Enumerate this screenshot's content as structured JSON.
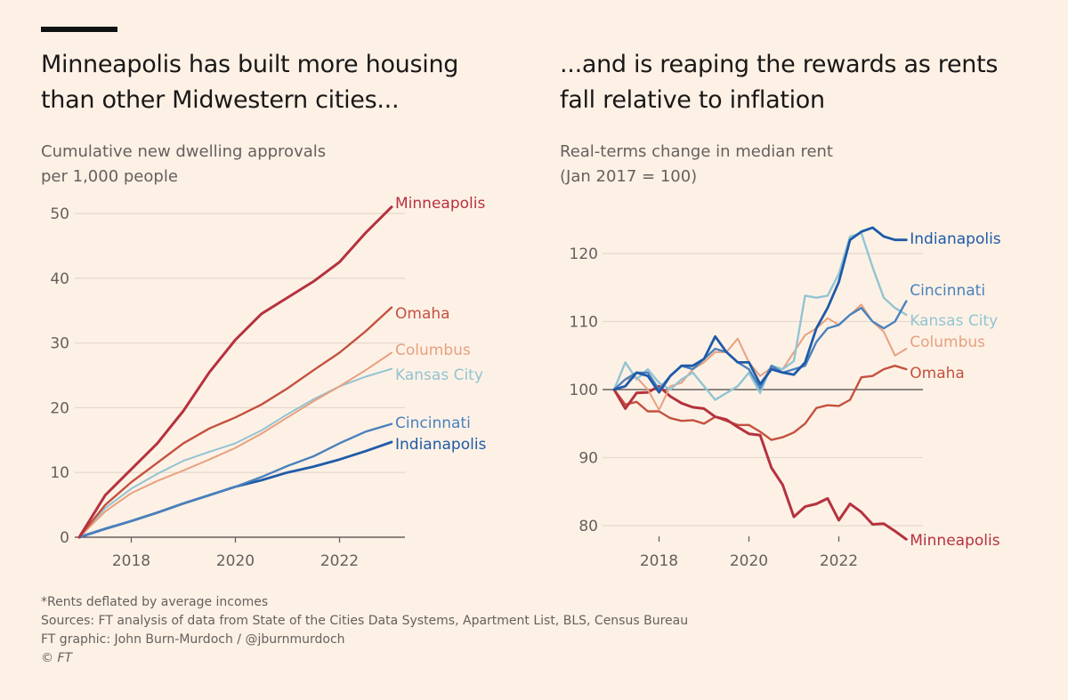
{
  "left": {
    "title_line1": "Minneapolis has built more housing",
    "title_line2": "than other Midwestern cities...",
    "subtitle_line1": "Cumulative new dwelling approvals",
    "subtitle_line2": "per 1,000 people"
  },
  "right": {
    "title_line1": "...and is reaping the rewards as rents",
    "title_line2": "fall relative to inflation",
    "subtitle_line1": "Real-terms change in median rent",
    "subtitle_line2": "(Jan 2017 = 100)"
  },
  "footer": {
    "note": "*Rents deflated by average incomes",
    "sources": "Sources: FT analysis of data from State of the Cities Data Systems, Apartment List, BLS, Census Bureau",
    "credit": "FT graphic: John Burn-Murdoch / @jburnmurdoch",
    "copyright": "© FT"
  },
  "colors": {
    "Minneapolis": "#b5323e",
    "Omaha": "#c4513e",
    "Columbus": "#e8a07f",
    "Kansas City": "#93c4d2",
    "Cincinnati": "#4a81bd",
    "Indianapolis": "#1f5aa8"
  },
  "chart_data": [
    {
      "type": "line",
      "title": "Minneapolis has built more housing than other Midwestern cities...",
      "subtitle": "Cumulative new dwelling approvals per 1,000 people",
      "xlabel": "",
      "ylabel": "",
      "xlim": [
        2017,
        2023
      ],
      "ylim": [
        0,
        50
      ],
      "xticks": [
        2018,
        2020,
        2022
      ],
      "yticks": [
        0,
        10,
        20,
        30,
        40,
        50
      ],
      "grid": true,
      "x": [
        2017,
        2017.5,
        2018,
        2018.5,
        2019,
        2019.5,
        2020,
        2020.5,
        2021,
        2021.5,
        2022,
        2022.5,
        2023
      ],
      "series": [
        {
          "name": "Minneapolis",
          "values": [
            0,
            6.5,
            10.5,
            14.5,
            19.5,
            25.5,
            30.5,
            34.5,
            37,
            39.5,
            42.5,
            47,
            51
          ]
        },
        {
          "name": "Omaha",
          "values": [
            0,
            5,
            8.5,
            11.5,
            14.5,
            16.8,
            18.5,
            20.5,
            23,
            25.8,
            28.5,
            31.8,
            35.5
          ]
        },
        {
          "name": "Columbus",
          "values": [
            0,
            4,
            6.8,
            8.7,
            10.3,
            12,
            13.8,
            16,
            18.5,
            21,
            23.3,
            25.8,
            28.5
          ]
        },
        {
          "name": "Kansas City",
          "values": [
            0,
            4.5,
            7.5,
            9.8,
            11.8,
            13.2,
            14.5,
            16.5,
            19,
            21.3,
            23.3,
            24.8,
            26
          ]
        },
        {
          "name": "Cincinnati",
          "values": [
            0,
            1.3,
            2.5,
            3.8,
            5.2,
            6.5,
            7.8,
            9.3,
            11,
            12.5,
            14.5,
            16.3,
            17.5
          ]
        },
        {
          "name": "Indianapolis",
          "values": [
            0,
            1.3,
            2.5,
            3.8,
            5.2,
            6.5,
            7.8,
            8.8,
            10,
            10.9,
            12,
            13.3,
            14.7
          ]
        }
      ],
      "labels": [
        "Minneapolis",
        "Omaha",
        "Columbus",
        "Kansas City",
        "Cincinnati",
        "Indianapolis"
      ],
      "legend": "direct-labels-right"
    },
    {
      "type": "line",
      "title": "...and is reaping the rewards as rents fall relative to inflation",
      "subtitle": "Real-terms change in median rent (Jan 2017 = 100)",
      "xlabel": "",
      "ylabel": "",
      "xlim": [
        2017,
        2023.5
      ],
      "ylim": [
        77,
        125
      ],
      "xticks": [
        2018,
        2020,
        2022
      ],
      "yticks": [
        80,
        90,
        100,
        110,
        120
      ],
      "baseline": 100,
      "grid": true,
      "x": [
        2017,
        2017.25,
        2017.5,
        2017.75,
        2018,
        2018.25,
        2018.5,
        2018.75,
        2019,
        2019.25,
        2019.5,
        2019.75,
        2020,
        2020.25,
        2020.5,
        2020.75,
        2021,
        2021.25,
        2021.5,
        2021.75,
        2022,
        2022.25,
        2022.5,
        2022.75,
        2023,
        2023.25,
        2023.5
      ],
      "series": [
        {
          "name": "Minneapolis",
          "values": [
            100,
            97.2,
            99.5,
            99.6,
            100.5,
            99,
            98,
            97.4,
            97.2,
            96,
            95.6,
            94.5,
            93.5,
            93.3,
            88.5,
            86,
            81.3,
            82.8,
            83.2,
            84,
            80.8,
            83.2,
            82,
            80.2,
            80.3,
            79.2,
            78
          ]
        },
        {
          "name": "Omaha",
          "values": [
            100,
            97.8,
            98.2,
            96.8,
            96.8,
            95.8,
            95.4,
            95.5,
            95,
            96,
            95.4,
            94.8,
            94.8,
            93.8,
            92.6,
            93,
            93.7,
            95,
            97.3,
            97.7,
            97.6,
            98.5,
            101.8,
            102,
            103,
            103.5,
            103
          ]
        },
        {
          "name": "Columbus",
          "values": [
            100,
            101.5,
            101.8,
            100,
            97,
            100.5,
            101,
            103,
            104,
            105.5,
            105.5,
            107.5,
            104,
            102,
            103.2,
            103,
            105.5,
            108,
            109,
            110.5,
            109.5,
            111,
            112.5,
            110,
            108.5,
            105,
            106
          ]
        },
        {
          "name": "Kansas City",
          "values": [
            100,
            104,
            101.5,
            103,
            101,
            100,
            101.5,
            102.5,
            100.5,
            98.5,
            99.5,
            100.5,
            102.5,
            99.5,
            103.5,
            103,
            104.2,
            113.8,
            113.5,
            113.8,
            117,
            122.5,
            123,
            118,
            113.5,
            112,
            111
          ]
        },
        {
          "name": "Cincinnati",
          "values": [
            100,
            101.5,
            102.5,
            102.5,
            100,
            102,
            103.5,
            103,
            104.5,
            106,
            105.5,
            104,
            103,
            100.2,
            103.5,
            102.5,
            103,
            103.5,
            107,
            109,
            109.5,
            111,
            112,
            110,
            109,
            110,
            113
          ]
        },
        {
          "name": "Indianapolis",
          "values": [
            100,
            100.5,
            102.5,
            102,
            99.6,
            102,
            103.5,
            103.5,
            104.5,
            107.8,
            105.5,
            104,
            104,
            100.8,
            103,
            102.5,
            102.2,
            104,
            109,
            112,
            115.8,
            122,
            123.2,
            123.8,
            122.5,
            122,
            122
          ]
        }
      ],
      "labels": [
        "Indianapolis",
        "Cincinnati",
        "Kansas City",
        "Columbus",
        "Omaha",
        "Minneapolis"
      ],
      "legend": "direct-labels-right"
    }
  ]
}
